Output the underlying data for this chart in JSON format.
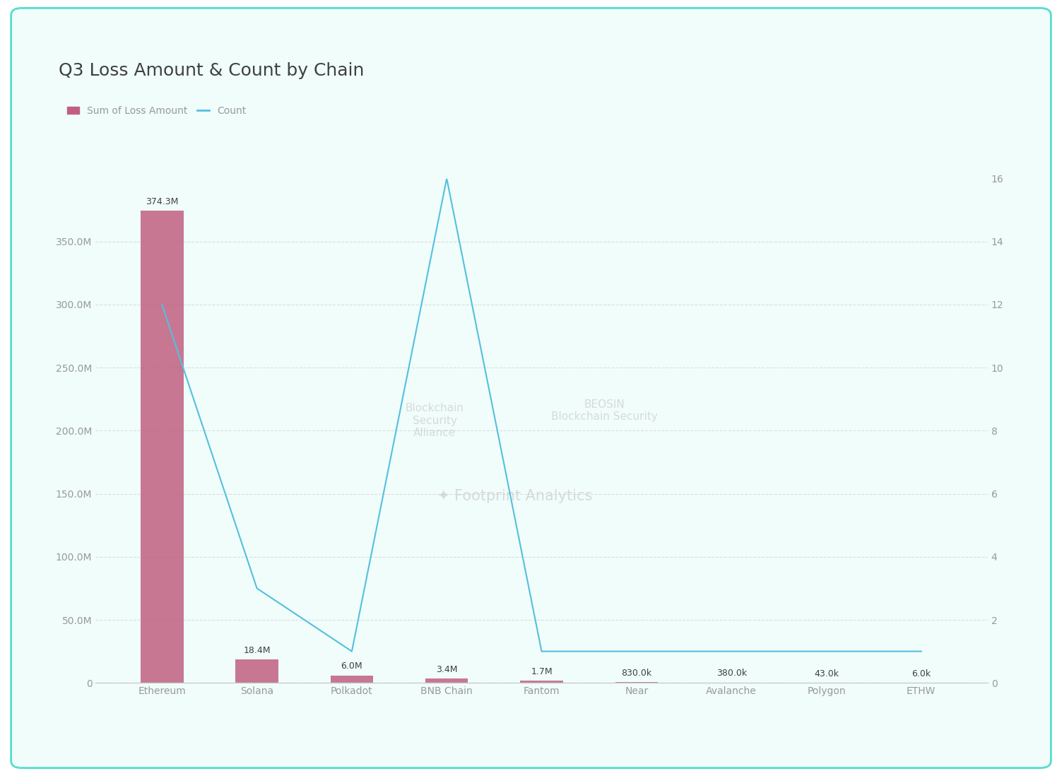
{
  "title": "Q3 Loss Amount & Count by Chain",
  "categories": [
    "Ethereum",
    "Solana",
    "Polkadot",
    "BNB Chain",
    "Fantom",
    "Near",
    "Avalanche",
    "Polygon",
    "ETHW"
  ],
  "loss_amounts": [
    374300000,
    18400000,
    6000000,
    3400000,
    1700000,
    830000,
    380000,
    43000,
    6000
  ],
  "counts": [
    12,
    3,
    1,
    16,
    1,
    1,
    1,
    1,
    1
  ],
  "bar_labels": [
    "374.3M",
    "18.4M",
    "6.0M",
    "3.4M",
    "1.7M",
    "830.0k",
    "380.0k",
    "43.0k",
    "6.0k"
  ],
  "bar_color": "#c06080",
  "line_color": "#55bfdf",
  "background_color": "#ffffff",
  "chart_bg_color": "#f0fdfb",
  "title_color": "#404040",
  "axis_color": "#cccccc",
  "tick_color": "#999999",
  "ylim_left": [
    0,
    400000000
  ],
  "ylim_right": [
    0,
    16
  ],
  "yticks_left": [
    0,
    50000000,
    100000000,
    150000000,
    200000000,
    250000000,
    300000000,
    350000000
  ],
  "ytick_labels_left": [
    "0",
    "50.0M",
    "100.0M",
    "150.0M",
    "200.0M",
    "250.0M",
    "300.0M",
    "350.0M"
  ],
  "yticks_right": [
    0,
    2,
    4,
    6,
    8,
    10,
    12,
    14,
    16
  ],
  "grid_color": "#dddddd",
  "legend_loss_label": "Sum of Loss Amount",
  "legend_count_label": "Count",
  "bar_width": 0.45,
  "title_fontsize": 18,
  "tick_fontsize": 10,
  "label_fontsize": 9,
  "legend_fontsize": 10,
  "border_color": "#55ddd0"
}
